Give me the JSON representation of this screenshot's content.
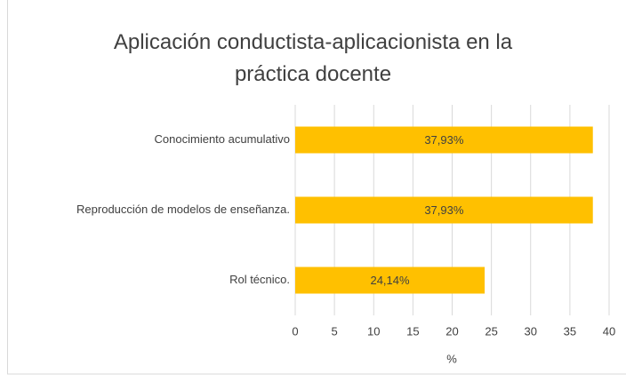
{
  "chart_data": {
    "type": "barh",
    "title": "Aplicación conductista-aplicacionista en la práctica docente",
    "categories": [
      "Conocimiento acumulativo",
      "Reproducción de modelos de enseñanza.",
      "Rol técnico."
    ],
    "values": [
      37.93,
      37.93,
      24.14
    ],
    "value_labels": [
      "37,93%",
      "37,93%",
      "24,14%"
    ],
    "color": "#ffc000",
    "xlabel": "%",
    "xlim": [
      0,
      40
    ],
    "xticks": [
      0,
      5,
      10,
      15,
      20,
      25,
      30,
      35,
      40
    ],
    "grid": true
  }
}
